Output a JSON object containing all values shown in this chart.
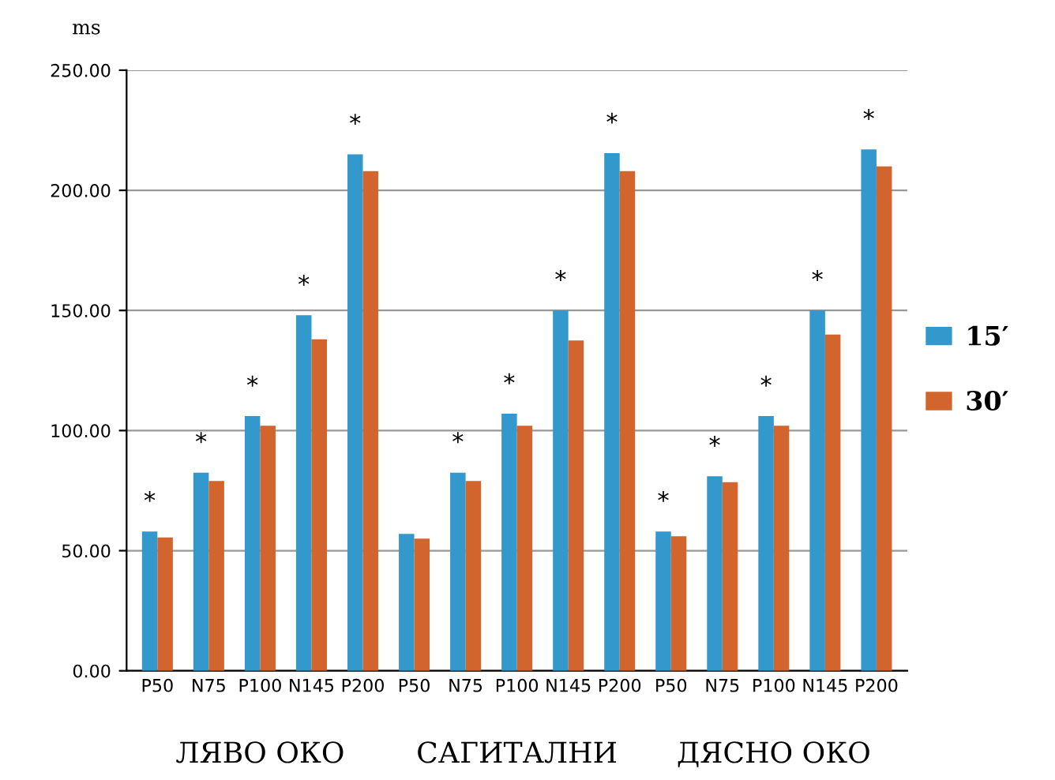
{
  "chart_data": {
    "type": "bar",
    "ylabel": "ms",
    "categories": [
      "P50",
      "N75",
      "P100",
      "N145",
      "P200",
      "P50",
      "N75",
      "P100",
      "N145",
      "P200",
      "P50",
      "N75",
      "P100",
      "N145",
      "P200"
    ],
    "series": [
      {
        "name": "15′",
        "color": "#3399cc",
        "values": [
          58,
          82.5,
          106,
          148,
          215,
          57,
          82.5,
          107,
          150,
          215.5,
          58,
          81,
          106,
          150,
          217
        ],
        "value_labels": [
          "*",
          "*",
          "*",
          "*",
          "*",
          null,
          "*",
          "*",
          "*",
          "*",
          "*",
          "*",
          "*",
          "*",
          "*"
        ]
      },
      {
        "name": "30′",
        "color": "#d2642e",
        "values": [
          55.5,
          79,
          102,
          138,
          208,
          55,
          79,
          102,
          137.5,
          208,
          56,
          78.5,
          102,
          140,
          210
        ]
      }
    ],
    "ylim": [
      0,
      250
    ],
    "yticks": [
      {
        "value": 0,
        "label": "0.00"
      },
      {
        "value": 50,
        "label": "50.00"
      },
      {
        "value": 100,
        "label": "100.00"
      },
      {
        "value": 150,
        "label": "150.00"
      },
      {
        "value": 200,
        "label": "200.00"
      },
      {
        "value": 250,
        "label": "250.00"
      }
    ],
    "grid": "y",
    "legend": "right",
    "annotations": [
      "ЛЯВО ОКО",
      "САГИТАЛНИ",
      "ДЯСНО ОКО"
    ]
  }
}
